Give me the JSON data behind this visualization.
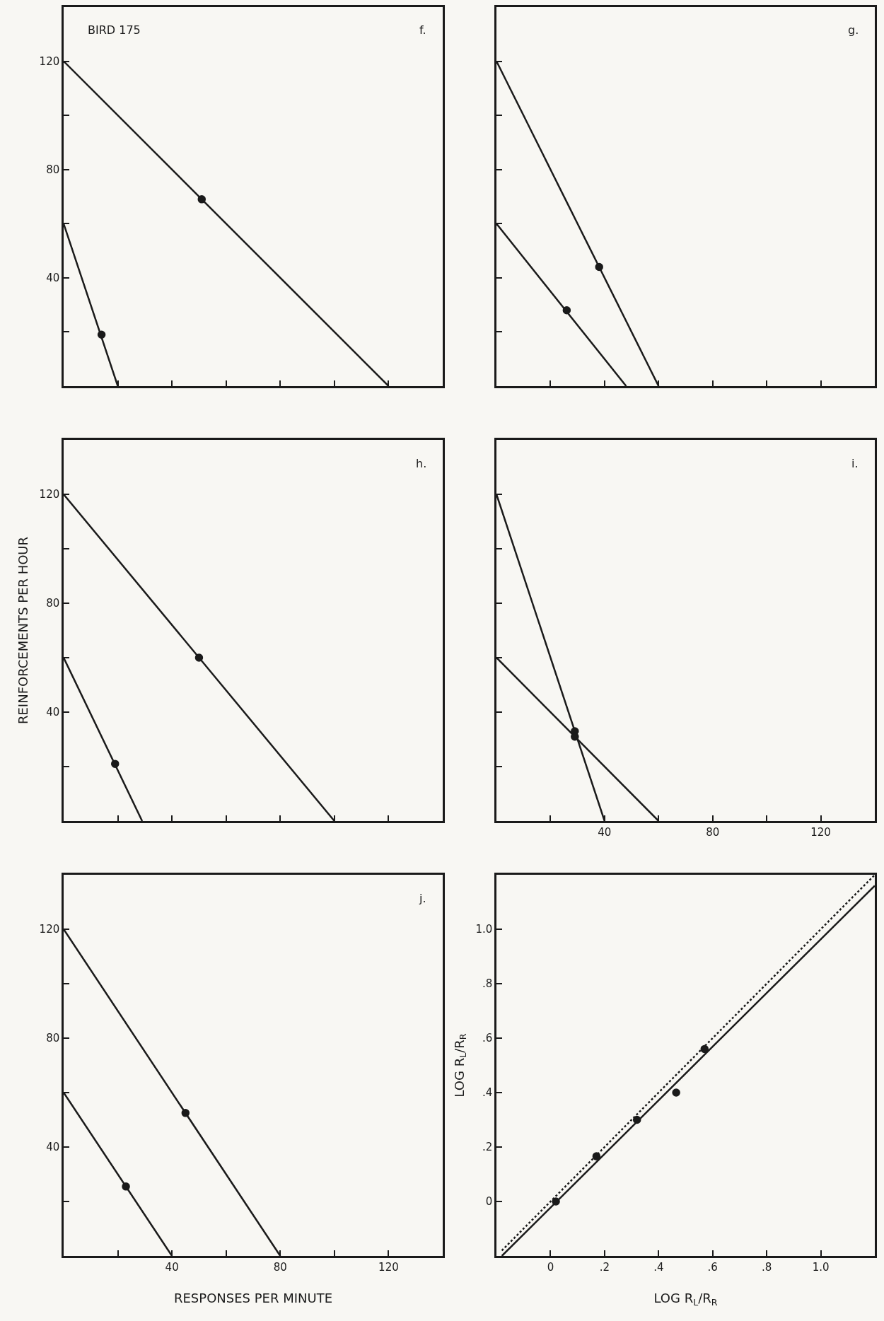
{
  "chart_data": [
    {
      "type": "line",
      "xlim": [
        0,
        140
      ],
      "ylim": [
        0,
        140
      ],
      "tick_labels": "y",
      "xticks": [
        {
          "value": 20,
          "label": null
        },
        {
          "value": 40,
          "label": null
        },
        {
          "value": 60,
          "label": null
        },
        {
          "value": 80,
          "label": null
        },
        {
          "value": 100,
          "label": null
        },
        {
          "value": 120,
          "label": null
        }
      ],
      "yticks": [
        {
          "value": 20,
          "label": null
        },
        40,
        {
          "value": 60,
          "label": null
        },
        80,
        {
          "value": 100,
          "label": null
        },
        120
      ],
      "annotations": [
        "BIRD 175",
        "f."
      ],
      "series": [
        {
          "color": "#1a1a1a",
          "x": [
            0,
            120
          ],
          "values": [
            120,
            0
          ]
        },
        {
          "color": "#1a1a1a",
          "x": [
            0,
            20
          ],
          "values": [
            60,
            0
          ]
        },
        {
          "type": "scatter",
          "color": "#1a1a1a",
          "marker": "circle",
          "x": [
            51,
            14
          ],
          "values": [
            69,
            19
          ]
        }
      ]
    },
    {
      "type": "line",
      "xlim": [
        0,
        140
      ],
      "ylim": [
        0,
        140
      ],
      "tick_labels": false,
      "xticks": [
        {
          "value": 20,
          "label": null
        },
        {
          "value": 40,
          "label": null
        },
        {
          "value": 60,
          "label": null
        },
        {
          "value": 80,
          "label": null
        },
        {
          "value": 100,
          "label": null
        },
        {
          "value": 120,
          "label": null
        }
      ],
      "yticks": [
        {
          "value": 20,
          "label": null
        },
        {
          "value": 40,
          "label": null
        },
        {
          "value": 60,
          "label": null
        },
        {
          "value": 80,
          "label": null
        },
        {
          "value": 100,
          "label": null
        },
        {
          "value": 120,
          "label": null
        }
      ],
      "annotations": [
        "g."
      ],
      "series": [
        {
          "color": "#1a1a1a",
          "x": [
            0,
            60
          ],
          "values": [
            120,
            0
          ]
        },
        {
          "color": "#1a1a1a",
          "x": [
            0,
            48
          ],
          "values": [
            60,
            0
          ]
        },
        {
          "type": "scatter",
          "color": "#1a1a1a",
          "marker": "circle",
          "x": [
            38,
            26
          ],
          "values": [
            44,
            28
          ]
        }
      ]
    },
    {
      "type": "line",
      "xlim": [
        0,
        140
      ],
      "ylim": [
        0,
        140
      ],
      "tick_labels": "y",
      "ylabel": "REINFORCEMENTS PER HOUR",
      "xticks": [
        {
          "value": 20,
          "label": null
        },
        {
          "value": 40,
          "label": null
        },
        {
          "value": 60,
          "label": null
        },
        {
          "value": 80,
          "label": null
        },
        {
          "value": 100,
          "label": null
        },
        {
          "value": 120,
          "label": null
        }
      ],
      "yticks": [
        {
          "value": 20,
          "label": null
        },
        40,
        {
          "value": 60,
          "label": null
        },
        80,
        {
          "value": 100,
          "label": null
        },
        120
      ],
      "annotations": [
        "h."
      ],
      "series": [
        {
          "color": "#1a1a1a",
          "x": [
            0,
            100
          ],
          "values": [
            120,
            0
          ]
        },
        {
          "color": "#1a1a1a",
          "x": [
            0,
            29
          ],
          "values": [
            60,
            0
          ]
        },
        {
          "type": "scatter",
          "color": "#1a1a1a",
          "marker": "circle",
          "x": [
            50,
            19
          ],
          "values": [
            60,
            21
          ]
        }
      ]
    },
    {
      "type": "line",
      "xlim": [
        0,
        140
      ],
      "ylim": [
        0,
        140
      ],
      "tick_labels": "x",
      "xticks": [
        {
          "value": 20,
          "label": null
        },
        40,
        {
          "value": 60,
          "label": null
        },
        80,
        {
          "value": 100,
          "label": null
        },
        120
      ],
      "yticks": [
        {
          "value": 20,
          "label": null
        },
        {
          "value": 40,
          "label": null
        },
        {
          "value": 60,
          "label": null
        },
        {
          "value": 80,
          "label": null
        },
        {
          "value": 100,
          "label": null
        },
        {
          "value": 120,
          "label": null
        }
      ],
      "annotations": [
        "i."
      ],
      "series": [
        {
          "color": "#1a1a1a",
          "x": [
            0,
            40
          ],
          "values": [
            120,
            0
          ]
        },
        {
          "color": "#1a1a1a",
          "x": [
            0,
            60
          ],
          "values": [
            60,
            0
          ]
        },
        {
          "type": "scatter",
          "color": "#1a1a1a",
          "marker": "circle",
          "x": [
            29,
            29
          ],
          "values": [
            33,
            31
          ]
        }
      ]
    },
    {
      "type": "line",
      "xlim": [
        0,
        140
      ],
      "ylim": [
        0,
        140
      ],
      "xlabel": "RESPONSES PER MINUTE",
      "xticks": [
        {
          "value": 20,
          "label": null
        },
        40,
        {
          "value": 60,
          "label": null
        },
        80,
        {
          "value": 100,
          "label": null
        },
        120
      ],
      "yticks": [
        {
          "value": 20,
          "label": null
        },
        40,
        {
          "value": 60,
          "label": null
        },
        80,
        {
          "value": 100,
          "label": null
        },
        120
      ],
      "annotations": [
        "j."
      ],
      "series": [
        {
          "color": "#1a1a1a",
          "x": [
            0,
            80
          ],
          "values": [
            120,
            0
          ]
        },
        {
          "color": "#1a1a1a",
          "x": [
            0,
            40
          ],
          "values": [
            60,
            0
          ]
        },
        {
          "type": "scatter",
          "color": "#1a1a1a",
          "marker": "circle",
          "x": [
            45,
            23
          ],
          "values": [
            52.5,
            25.5
          ]
        }
      ]
    },
    {
      "type": "scatter",
      "xlim": [
        -0.2,
        1.2
      ],
      "ylim": [
        -0.2,
        1.2
      ],
      "xlabel": "LOG R$_{L}$/R$_{R}$",
      "ylabel": "LOG R$_{L}$/R$_{R}$",
      "xticks": [
        0,
        {
          "value": 0.2,
          "label": ".2"
        },
        {
          "value": 0.4,
          "label": ".4"
        },
        {
          "value": 0.6,
          "label": ".6"
        },
        {
          "value": 0.8,
          "label": ".8"
        },
        {
          "value": 1.0,
          "label": "1.0"
        }
      ],
      "yticks": [
        0,
        {
          "value": 0.2,
          "label": ".2"
        },
        {
          "value": 0.4,
          "label": ".4"
        },
        {
          "value": 0.6,
          "label": ".6"
        },
        {
          "value": 0.8,
          "label": ".8"
        },
        {
          "value": 1.0,
          "label": "1.0"
        }
      ],
      "series": [
        {
          "type": "line",
          "color": "#1a1a1a",
          "line_style": "dotted",
          "x": [
            -0.18,
            1.2
          ],
          "values": [
            -0.18,
            1.2
          ]
        },
        {
          "type": "line",
          "color": "#1a1a1a",
          "line_style": "solid",
          "x": [
            -0.18,
            1.2
          ],
          "values": [
            -0.2,
            1.16
          ]
        },
        {
          "color": "#1a1a1a",
          "marker": "circle",
          "x": [
            0.02,
            0.17,
            0.32,
            0.465,
            0.57
          ],
          "values": [
            0.0,
            0.166,
            0.3,
            0.4,
            0.56
          ]
        }
      ]
    }
  ]
}
